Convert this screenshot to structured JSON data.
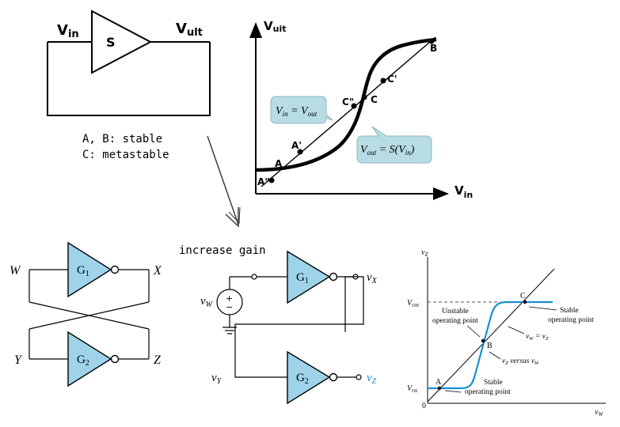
{
  "top_left": {
    "vin_label": "V",
    "vin_sub": "in",
    "vout_label": "V",
    "vout_sub": "ult",
    "gate_label": "S",
    "note_line1": "A, B: stable",
    "note_line2": "C: metastable"
  },
  "top_right_plot": {
    "y_axis_label": "V",
    "y_axis_sub": "uit",
    "x_axis_label": "V",
    "x_axis_sub": "in",
    "points": [
      "A",
      "A\"",
      "A'",
      "C\"",
      "C",
      "C'",
      "B"
    ],
    "callout_line": {
      "lhs": "V",
      "lhs_sub": "in",
      "rhs": "V",
      "rhs_sub": "out"
    },
    "callout_curve": {
      "lhs": "V",
      "lhs_sub": "out",
      "func": "S",
      "arg": "V",
      "arg_sub": "in"
    }
  },
  "arrow_caption": "increase gain",
  "latch_left": {
    "labels": [
      "W",
      "X",
      "Y",
      "Z"
    ],
    "gate1": "G",
    "gate1_sub": "1",
    "gate2": "G",
    "gate2_sub": "2"
  },
  "latch_middle": {
    "vw": "v",
    "vw_sub": "W",
    "vx": "v",
    "vx_sub": "X",
    "vy": "v",
    "vy_sub": "Y",
    "vz": "v",
    "vz_sub": "Z",
    "gate1": "G",
    "gate1_sub": "1",
    "gate2": "G",
    "gate2_sub": "2",
    "source_sign_plus": "+",
    "source_sign_minus": "−"
  },
  "transfer_plot": {
    "y_axis": "v",
    "y_axis_sub": "Z",
    "x_axis": "v",
    "x_axis_sub": "W",
    "voh": "V",
    "voh_sub": "OH",
    "vol": "V",
    "vol_sub": "OL",
    "origin": "0",
    "point_a": "A",
    "point_b": "B",
    "point_c": "C",
    "stable_top_1": "Stable",
    "stable_top_2": "operating point",
    "unstable_1": "Unstable",
    "unstable_2": "operating point",
    "stable_bottom_1": "Stable",
    "stable_bottom_2": "operating point",
    "eq_line_1": "v",
    "eq_line_sub1": "W",
    "eq_line_mid": " = v",
    "eq_line_sub2": "Z",
    "versus_1": "v",
    "versus_sub1": "Z",
    "versus_mid": " versus v",
    "versus_sub2": "W"
  },
  "colors": {
    "gate_fill": "#9ed3ea",
    "callout_fill": "#b7dce3",
    "curve_blue": "#1a8fd1",
    "vz_blue": "#1a8fd1"
  }
}
